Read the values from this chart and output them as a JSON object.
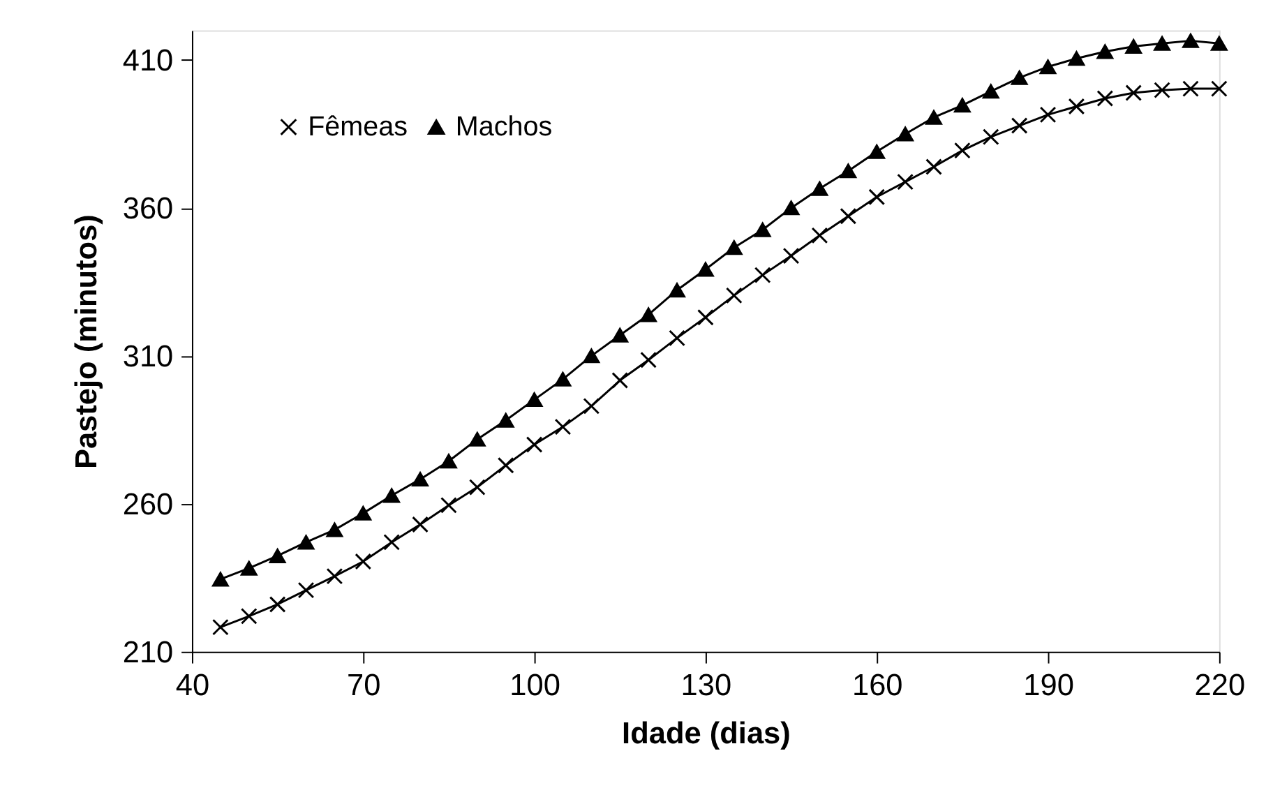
{
  "chart_data": {
    "type": "line",
    "xlabel": "Idade (dias)",
    "ylabel": "Pastejo (minutos)",
    "x": [
      45,
      50,
      55,
      60,
      65,
      70,
      75,
      80,
      85,
      90,
      95,
      100,
      105,
      110,
      115,
      120,
      125,
      130,
      135,
      140,
      145,
      150,
      155,
      160,
      165,
      170,
      175,
      180,
      185,
      190,
      195,
      200,
      205,
      210,
      215,
      220
    ],
    "series": [
      {
        "name": "Fêmeas",
        "color": "#000000",
        "marker": "cross",
        "values": [
          218.3,
          222,
          226,
          230.8,
          235.5,
          240.5,
          247,
          253,
          259.5,
          265.6,
          273,
          280,
          286,
          293,
          301.7,
          308.6,
          316,
          323,
          330.4,
          337.3,
          343.8,
          350.7,
          357.2,
          363.7,
          368.8,
          373.9,
          379.4,
          384,
          387.8,
          391.5,
          394.3,
          397,
          398.9,
          399.8,
          400.3,
          400.3
        ]
      },
      {
        "name": "Machos",
        "color": "#000000",
        "marker": "triangle",
        "values": [
          234.5,
          238.2,
          242.4,
          247,
          251.2,
          256.8,
          262.8,
          268.3,
          274.4,
          281.8,
          288.2,
          295.2,
          302.1,
          310,
          317,
          323.9,
          332.2,
          339.2,
          346.6,
          352.6,
          360,
          366.5,
          372.5,
          379,
          385,
          390.6,
          394.7,
          399.4,
          404,
          407.7,
          410.5,
          412.8,
          414.6,
          415.6,
          416.5,
          415.6
        ]
      }
    ],
    "xlim": [
      40,
      220
    ],
    "xticks": [
      40,
      70,
      100,
      130,
      160,
      190,
      220
    ],
    "ylim": [
      210,
      420
    ],
    "yticks": [
      210,
      260,
      310,
      360,
      410
    ],
    "grid": false,
    "legend": "top left",
    "line_style": "solid"
  }
}
